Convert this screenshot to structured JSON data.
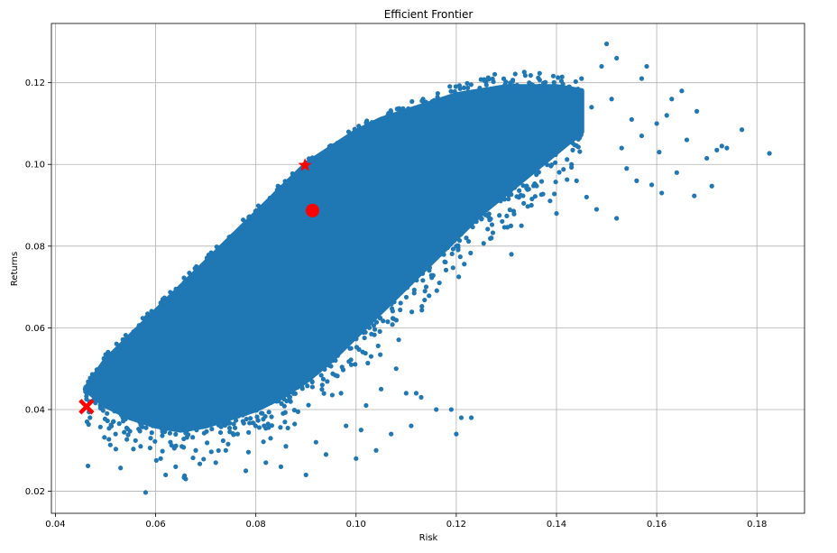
{
  "chart_data": {
    "type": "scatter",
    "title": "Efficient Frontier",
    "xlabel": "Risk",
    "ylabel": "Returns",
    "xlim": [
      0.0392,
      0.1895
    ],
    "ylim": [
      0.0146,
      0.1345
    ],
    "xticks": [
      0.04,
      0.06,
      0.08,
      0.1,
      0.12,
      0.14,
      0.16,
      0.18
    ],
    "xtick_labels": [
      "0.04",
      "0.06",
      "0.08",
      "0.10",
      "0.12",
      "0.14",
      "0.16",
      "0.18"
    ],
    "yticks": [
      0.02,
      0.04,
      0.06,
      0.08,
      0.1,
      0.12
    ],
    "ytick_labels": [
      "0.02",
      "0.04",
      "0.06",
      "0.08",
      "0.10",
      "0.12"
    ],
    "grid": true,
    "series": [
      {
        "marker": "circle",
        "color": "#1f77b4",
        "note_description": "dense cloud of random portfolios",
        "cloud": {
          "upper_envelope": [
            [
              0.046,
              0.045
            ],
            [
              0.05,
              0.052
            ],
            [
              0.055,
              0.058
            ],
            [
              0.06,
              0.064
            ],
            [
              0.065,
              0.07
            ],
            [
              0.07,
              0.076
            ],
            [
              0.075,
              0.082
            ],
            [
              0.08,
              0.088
            ],
            [
              0.085,
              0.094
            ],
            [
              0.09,
              0.1
            ],
            [
              0.095,
              0.104
            ],
            [
              0.1,
              0.108
            ],
            [
              0.105,
              0.111
            ],
            [
              0.11,
              0.113
            ],
            [
              0.115,
              0.115
            ],
            [
              0.12,
              0.117
            ],
            [
              0.125,
              0.118
            ],
            [
              0.13,
              0.119
            ],
            [
              0.135,
              0.119
            ],
            [
              0.14,
              0.119
            ],
            [
              0.145,
              0.118
            ]
          ],
          "lower_envelope": [
            [
              0.046,
              0.045
            ],
            [
              0.05,
              0.041
            ],
            [
              0.055,
              0.038
            ],
            [
              0.06,
              0.036
            ],
            [
              0.065,
              0.035
            ],
            [
              0.07,
              0.036
            ],
            [
              0.075,
              0.038
            ],
            [
              0.08,
              0.04
            ],
            [
              0.085,
              0.043
            ],
            [
              0.09,
              0.047
            ],
            [
              0.095,
              0.052
            ],
            [
              0.1,
              0.058
            ],
            [
              0.105,
              0.064
            ],
            [
              0.11,
              0.07
            ],
            [
              0.115,
              0.076
            ],
            [
              0.12,
              0.082
            ],
            [
              0.125,
              0.088
            ],
            [
              0.13,
              0.093
            ],
            [
              0.135,
              0.098
            ],
            [
              0.14,
              0.103
            ],
            [
              0.145,
              0.108
            ]
          ]
        },
        "outliers": [
          [
            0.0465,
            0.0262
          ],
          [
            0.053,
            0.0257
          ],
          [
            0.058,
            0.0197
          ],
          [
            0.062,
            0.024
          ],
          [
            0.061,
            0.028
          ],
          [
            0.066,
            0.023
          ],
          [
            0.064,
            0.026
          ],
          [
            0.072,
            0.027
          ],
          [
            0.078,
            0.025
          ],
          [
            0.082,
            0.027
          ],
          [
            0.085,
            0.026
          ],
          [
            0.09,
            0.024
          ],
          [
            0.094,
            0.029
          ],
          [
            0.1,
            0.028
          ],
          [
            0.104,
            0.03
          ],
          [
            0.101,
            0.035
          ],
          [
            0.107,
            0.034
          ],
          [
            0.111,
            0.036
          ],
          [
            0.112,
            0.044
          ],
          [
            0.113,
            0.043
          ],
          [
            0.116,
            0.04
          ],
          [
            0.119,
            0.04
          ],
          [
            0.12,
            0.034
          ],
          [
            0.121,
            0.038
          ],
          [
            0.123,
            0.038
          ],
          [
            0.097,
            0.044
          ],
          [
            0.102,
            0.041
          ],
          [
            0.105,
            0.045
          ],
          [
            0.108,
            0.05
          ],
          [
            0.11,
            0.044
          ],
          [
            0.099,
            0.055
          ],
          [
            0.103,
            0.053
          ],
          [
            0.095,
            0.058
          ],
          [
            0.057,
            0.031
          ],
          [
            0.068,
            0.03
          ],
          [
            0.074,
            0.03
          ],
          [
            0.052,
            0.034
          ],
          [
            0.059,
            0.033
          ],
          [
            0.086,
            0.031
          ],
          [
            0.092,
            0.032
          ],
          [
            0.098,
            0.036
          ],
          [
            0.15,
            0.1295
          ],
          [
            0.149,
            0.124
          ],
          [
            0.152,
            0.126
          ],
          [
            0.158,
            0.124
          ],
          [
            0.157,
            0.121
          ],
          [
            0.163,
            0.116
          ],
          [
            0.165,
            0.118
          ],
          [
            0.16,
            0.11
          ],
          [
            0.162,
            0.112
          ],
          [
            0.168,
            0.113
          ],
          [
            0.166,
            0.106
          ],
          [
            0.17,
            0.1015
          ],
          [
            0.173,
            0.1045
          ],
          [
            0.172,
            0.1035
          ],
          [
            0.177,
            0.1085
          ],
          [
            0.1825,
            0.1027
          ],
          [
            0.174,
            0.104
          ],
          [
            0.171,
            0.0947
          ],
          [
            0.1675,
            0.0923
          ],
          [
            0.161,
            0.093
          ],
          [
            0.159,
            0.095
          ],
          [
            0.156,
            0.096
          ],
          [
            0.154,
            0.099
          ],
          [
            0.152,
            0.0868
          ],
          [
            0.148,
            0.089
          ],
          [
            0.146,
            0.092
          ],
          [
            0.144,
            0.096
          ],
          [
            0.143,
            0.1
          ],
          [
            0.141,
            0.104
          ],
          [
            0.139,
            0.109
          ],
          [
            0.137,
            0.105
          ],
          [
            0.153,
            0.104
          ],
          [
            0.155,
            0.111
          ],
          [
            0.151,
            0.116
          ],
          [
            0.147,
            0.114
          ],
          [
            0.145,
            0.121
          ],
          [
            0.142,
            0.115
          ],
          [
            0.138,
            0.113
          ],
          [
            0.136,
            0.11
          ],
          [
            0.134,
            0.104
          ],
          [
            0.132,
            0.099
          ],
          [
            0.13,
            0.096
          ],
          [
            0.128,
            0.092
          ],
          [
            0.126,
            0.089
          ],
          [
            0.124,
            0.086
          ],
          [
            0.122,
            0.082
          ],
          [
            0.12,
            0.08
          ],
          [
            0.14,
            0.088
          ],
          [
            0.135,
            0.09
          ],
          [
            0.133,
            0.085
          ],
          [
            0.131,
            0.078
          ],
          [
            0.127,
            0.082
          ],
          [
            0.164,
            0.098
          ],
          [
            0.1605,
            0.103
          ],
          [
            0.157,
            0.107
          ]
        ]
      }
    ],
    "markers": [
      {
        "kind": "star",
        "x": 0.0898,
        "y": 0.0998,
        "color": "#ff0000"
      },
      {
        "kind": "circle",
        "x": 0.0913,
        "y": 0.0887,
        "color": "#ff0000"
      },
      {
        "kind": "x",
        "x": 0.0462,
        "y": 0.0407,
        "color": "#ff0000"
      }
    ]
  },
  "colors": {
    "series": "#1f77b4",
    "highlight": "#ff0000",
    "grid": "#b0b0b0"
  }
}
